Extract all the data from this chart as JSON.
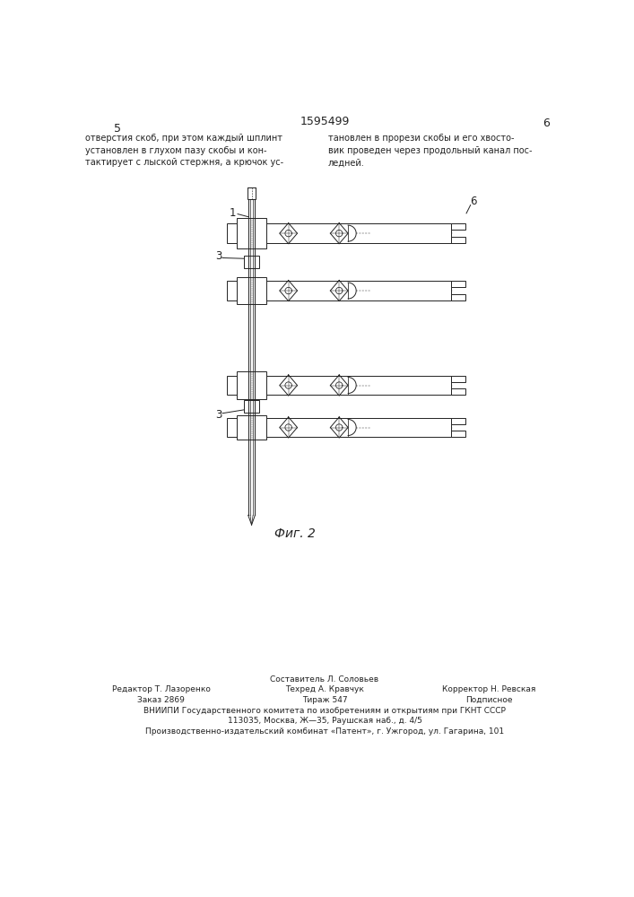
{
  "page_width": 7.07,
  "page_height": 10.0,
  "background_color": "#ffffff",
  "header_patent_number": "1595499",
  "header_page_number": "6",
  "header_page_number_left": "5",
  "header_text_left": "отверстия скоб, при этом каждый шплинт\nустановлен в глухом пазу скобы и кон-\nтактирует с лыской стержня, а крючок ус-",
  "header_text_right": "тановлен в прорези скобы и его хвосто-\nвик проведен через продольный канал пос-\nледней.",
  "fig_label": "Фиг. 2",
  "footer_line1_center": "Составитель Л. Соловьев",
  "footer_line2_left": "Редактор Т. Лазоренко",
  "footer_line2_center": "Техред А. Кравчук",
  "footer_line2_right": "Корректор Н. Ревская",
  "footer_line3_left": "Заказ 2869",
  "footer_line3_center": "Тираж 547",
  "footer_line3_right": "Подписное",
  "footer_line4": "ВНИИПИ Государственного комитета по изобретениям и открытиям при ГКНТ СССР",
  "footer_line5": "113035, Москва, Ж—35, Раушская наб., д. 4/5",
  "footer_line6": "Производственно-издательский комбинат «Патент», г. Ужгород, ул. Гагарина, 101"
}
